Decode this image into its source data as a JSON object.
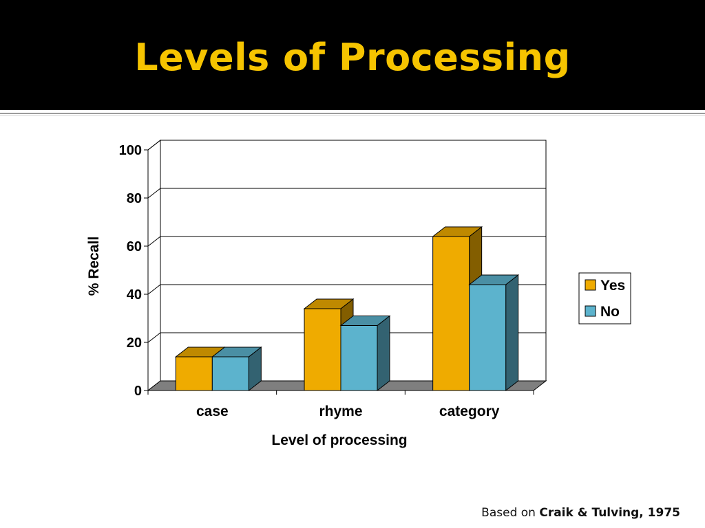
{
  "slide": {
    "title": "Levels of Processing",
    "citation_prefix": "Based on ",
    "citation_source": "Craik & Tulving, 1975"
  },
  "colors": {
    "header_bg": "#000000",
    "title": "#f6c400",
    "yes": "#efab00",
    "no": "#5cb3cd",
    "floor": "#7f7f7f"
  },
  "chart_data": {
    "type": "bar",
    "style": "3d-clustered-column",
    "categories": [
      "case",
      "rhyme",
      "category"
    ],
    "series": [
      {
        "name": "Yes",
        "values": [
          14,
          34,
          64
        ]
      },
      {
        "name": "No",
        "values": [
          14,
          27,
          44
        ]
      }
    ],
    "xlabel": "Level of processing",
    "ylabel": "% Recall",
    "ylim": [
      0,
      100
    ],
    "yticks": [
      0,
      20,
      40,
      60,
      80,
      100
    ],
    "grid": true,
    "legend": "right"
  }
}
